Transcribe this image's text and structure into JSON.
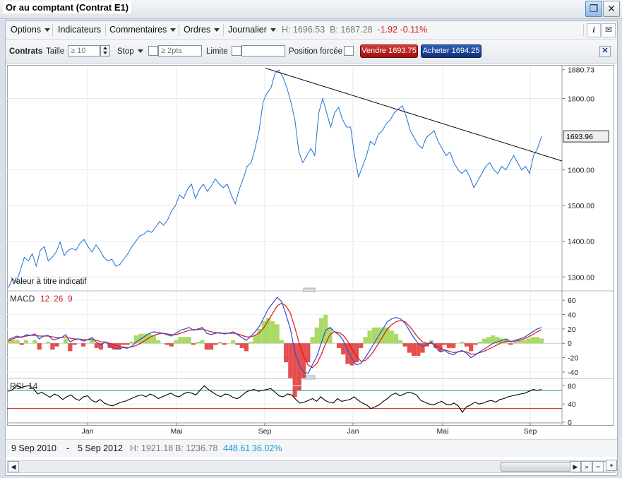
{
  "window": {
    "title": "Or au comptant (Contrat E1)"
  },
  "menubar": {
    "items": [
      {
        "label": "Options"
      },
      {
        "label": "Indicateurs"
      },
      {
        "label": "Commentaires"
      },
      {
        "label": "Ordres"
      },
      {
        "label": "Journalier"
      }
    ],
    "quote": {
      "high": "H: 1696.53",
      "bid": "B: 1687.28",
      "change": "-1.92",
      "change_pct": "-0.11%"
    }
  },
  "orderbar": {
    "contracts_label": "Contrats",
    "size_label": "Taille",
    "size_placeholder": "≥ 10",
    "stop_label": "Stop",
    "stop_placeholder": "≥ 2pts",
    "limit_label": "Limite",
    "forced_label": "Position forcée",
    "sell_label": "Vendre 1693.75",
    "buy_label": "Acheter 1694.25"
  },
  "chart_data": [
    {
      "type": "line",
      "name": "price",
      "ylim": [
        1265,
        1890
      ],
      "y_ticks": [
        "1880.73",
        "1800.00",
        "1600.00",
        "1500.00",
        "1400.00",
        "1300.00"
      ],
      "current_value": "1693.96",
      "x_ticks": [
        "Jan",
        "Mai",
        "Sep",
        "Jan",
        "Mai",
        "Sep"
      ],
      "note": "Valeur à titre indicatif",
      "series": [
        {
          "color": "#1f6fd6",
          "values": [
            1270,
            1295,
            1285,
            1320,
            1355,
            1345,
            1365,
            1330,
            1375,
            1385,
            1345,
            1355,
            1370,
            1398,
            1360,
            1375,
            1380,
            1375,
            1395,
            1405,
            1385,
            1370,
            1390,
            1375,
            1355,
            1345,
            1350,
            1330,
            1335,
            1350,
            1365,
            1385,
            1400,
            1415,
            1420,
            1430,
            1425,
            1440,
            1455,
            1445,
            1460,
            1485,
            1500,
            1530,
            1520,
            1545,
            1560,
            1520,
            1545,
            1560,
            1540,
            1555,
            1575,
            1560,
            1550,
            1560,
            1530,
            1505,
            1545,
            1575,
            1610,
            1620,
            1660,
            1710,
            1790,
            1815,
            1830,
            1870,
            1880,
            1860,
            1830,
            1790,
            1740,
            1650,
            1620,
            1640,
            1660,
            1640,
            1760,
            1800,
            1760,
            1720,
            1760,
            1775,
            1740,
            1720,
            1720,
            1640,
            1580,
            1610,
            1640,
            1680,
            1670,
            1700,
            1710,
            1730,
            1740,
            1760,
            1770,
            1780,
            1750,
            1710,
            1690,
            1670,
            1660,
            1690,
            1700,
            1710,
            1680,
            1660,
            1640,
            1650,
            1620,
            1600,
            1590,
            1600,
            1580,
            1550,
            1570,
            1590,
            1610,
            1620,
            1600,
            1590,
            1610,
            1600,
            1620,
            1640,
            1620,
            1600,
            1610,
            1590,
            1640,
            1660,
            1693.96
          ]
        },
        {
          "color": "#000000",
          "values": [
            1885,
            1625
          ]
        }
      ]
    },
    {
      "type": "line",
      "name": "MACD",
      "label": "MACD",
      "params": [
        "12",
        "26",
        "9"
      ],
      "ylim": [
        -45,
        70
      ],
      "y_ticks": [
        "60",
        "40",
        "20",
        "0",
        "-20",
        "-40"
      ],
      "series": [
        {
          "color": "#2b4bd6",
          "values": [
            5,
            8,
            10,
            8,
            12,
            11,
            13,
            6,
            10,
            11,
            5,
            6,
            8,
            12,
            2,
            5,
            6,
            3,
            5,
            8,
            1,
            -2,
            2,
            -3,
            -6,
            -8,
            -6,
            -7,
            -4,
            2,
            6,
            10,
            14,
            16,
            15,
            14,
            12,
            10,
            14,
            18,
            20,
            22,
            18,
            20,
            22,
            14,
            12,
            14,
            15,
            13,
            14,
            16,
            12,
            8,
            4,
            10,
            16,
            24,
            36,
            48,
            56,
            64,
            58,
            40,
            20,
            -12,
            -30,
            -40,
            -42,
            -30,
            -18,
            0,
            18,
            22,
            16,
            12,
            4,
            -10,
            -22,
            -30,
            -28,
            -20,
            -10,
            0,
            10,
            20,
            30,
            34,
            36,
            34,
            28,
            18,
            8,
            0,
            -4,
            -2,
            2,
            -6,
            -12,
            -10,
            -14,
            -16,
            -12,
            -10,
            -14,
            -20,
            -16,
            -12,
            -8,
            -4,
            0,
            2,
            4,
            6,
            2,
            4,
            6,
            8,
            12,
            16,
            20,
            22
          ]
        },
        {
          "color": "#e01515",
          "values": [
            3,
            6,
            8,
            9,
            10,
            11,
            11,
            10,
            10,
            10,
            9,
            8,
            8,
            9,
            7,
            6,
            6,
            5,
            5,
            5,
            4,
            2,
            2,
            0,
            -2,
            -4,
            -5,
            -6,
            -5,
            -3,
            0,
            4,
            8,
            11,
            13,
            14,
            13,
            12,
            12,
            14,
            16,
            18,
            19,
            19,
            20,
            18,
            16,
            15,
            14,
            14,
            14,
            14,
            13,
            11,
            9,
            9,
            11,
            15,
            22,
            32,
            42,
            52,
            56,
            52,
            42,
            22,
            0,
            -18,
            -30,
            -34,
            -28,
            -16,
            0,
            12,
            16,
            15,
            11,
            3,
            -8,
            -18,
            -25,
            -24,
            -18,
            -10,
            0,
            10,
            20,
            26,
            30,
            32,
            30,
            24,
            16,
            8,
            2,
            0,
            0,
            -3,
            -7,
            -9,
            -11,
            -13,
            -12,
            -11,
            -12,
            -15,
            -15,
            -13,
            -11,
            -8,
            -5,
            -2,
            1,
            3,
            3,
            3,
            4,
            6,
            9,
            12,
            16,
            19
          ]
        }
      ]
    },
    {
      "type": "line",
      "name": "RSI",
      "label": "RSI",
      "params": [
        "14"
      ],
      "ylim": [
        0,
        90
      ],
      "y_ticks": [
        "80",
        "40",
        "0"
      ],
      "levels": [
        70,
        30
      ],
      "series": [
        {
          "color": "#000000",
          "values": [
            68,
            72,
            80,
            76,
            79,
            80,
            74,
            62,
            66,
            60,
            55,
            62,
            58,
            50,
            56,
            60,
            52,
            48,
            56,
            58,
            48,
            44,
            50,
            42,
            38,
            36,
            40,
            44,
            46,
            50,
            54,
            58,
            60,
            56,
            62,
            58,
            52,
            56,
            60,
            64,
            58,
            56,
            62,
            66,
            64,
            60,
            70,
            80,
            72,
            66,
            60,
            56,
            62,
            60,
            54,
            52,
            58,
            66,
            70,
            72,
            68,
            70,
            72,
            74,
            66,
            58,
            56,
            62,
            60,
            50,
            42,
            44,
            48,
            52,
            46,
            56,
            48,
            44,
            42,
            52,
            46,
            48,
            50,
            56,
            48,
            42,
            38,
            30,
            34,
            38,
            46,
            52,
            60,
            64,
            58,
            62,
            66,
            64,
            60,
            48,
            44,
            40,
            38,
            42,
            46,
            40,
            38,
            42,
            36,
            22,
            34,
            38,
            44,
            40,
            42,
            46,
            48,
            44,
            50,
            52,
            56,
            58,
            60,
            62,
            64,
            68,
            72,
            70,
            72
          ]
        }
      ]
    }
  ],
  "footer": {
    "start_date": "9 Sep 2010",
    "dash": "-",
    "end_date": "5 Sep 2012",
    "high": "H: 1921.18",
    "bid": "B: 1236.78",
    "range": "448.61",
    "range_pct": "36.02%"
  },
  "icons": {
    "restore": "restore-window-icon",
    "close": "close-icon",
    "info": "info-icon",
    "mail": "mail-icon"
  }
}
